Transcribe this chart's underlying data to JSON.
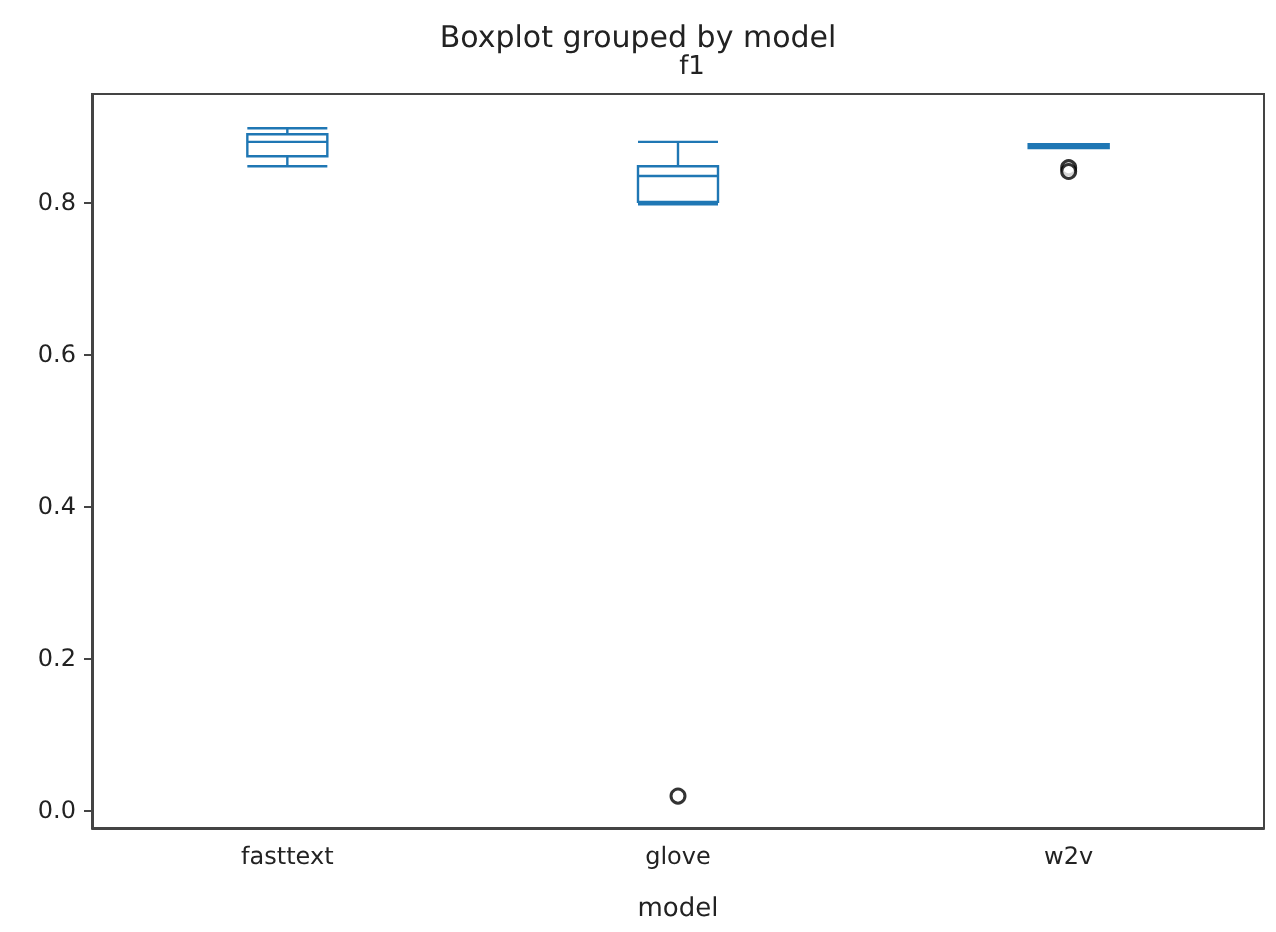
{
  "chart_data": {
    "type": "box",
    "title": "Boxplot grouped by model",
    "subtitle": "f1",
    "xlabel": "model",
    "categories": [
      "fasttext",
      "glove",
      "w2v"
    ],
    "boxes": [
      {
        "low": 0.847,
        "q1": 0.86,
        "median": 0.879,
        "q3": 0.889,
        "high": 0.897
      },
      {
        "low": 0.797,
        "q1": 0.8,
        "median": 0.834,
        "q3": 0.847,
        "high": 0.879,
        "outliers": [
          0.018
        ]
      },
      {
        "low": 0.871,
        "q1": 0.871,
        "median": 0.873,
        "q3": 0.876,
        "high": 0.876,
        "outliers": [
          0.845,
          0.84
        ]
      }
    ],
    "color": "#1f77b4",
    "ylim": [
      -0.024,
      0.942
    ],
    "yticks": [
      {
        "value": 0,
        "label": "0.0"
      },
      {
        "value": 0.2,
        "label": "0.2"
      },
      {
        "value": 0.4,
        "label": "0.4"
      },
      {
        "value": 0.6,
        "label": "0.6"
      },
      {
        "value": 0.8,
        "label": "0.8"
      }
    ]
  }
}
